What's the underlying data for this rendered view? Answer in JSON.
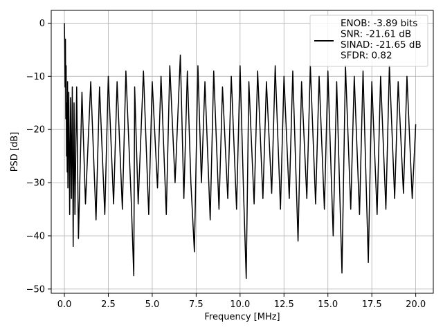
{
  "chart_data": {
    "type": "line",
    "title": "",
    "xlabel": "Frequency [MHz]",
    "ylabel": "PSD [dB]",
    "xlim": [
      -0.75,
      21.0
    ],
    "ylim": [
      -50.8,
      2.4
    ],
    "xticks": [
      0.0,
      2.5,
      5.0,
      7.5,
      10.0,
      12.5,
      15.0,
      17.5,
      20.0
    ],
    "xtick_labels": [
      "0.0",
      "2.5",
      "5.0",
      "7.5",
      "10.0",
      "12.5",
      "15.0",
      "17.5",
      "20.0"
    ],
    "yticks": [
      0,
      -10,
      -20,
      -30,
      -40,
      -50
    ],
    "ytick_labels": [
      "0",
      "−10",
      "−20",
      "−30",
      "−40",
      "−50"
    ],
    "grid": true,
    "legend": {
      "placement": "top-right",
      "entries": [
        "ENOB: -3.89 bits",
        "SNR: -21.61 dB",
        "SINAD: -21.65 dB",
        "SFDR: 0.82"
      ]
    },
    "series_color": "#000000",
    "series": [
      {
        "x": [
          0.0,
          0.02,
          0.04,
          0.06,
          0.08,
          0.1,
          0.12,
          0.14,
          0.16,
          0.18,
          0.2,
          0.25,
          0.3,
          0.35,
          0.4,
          0.45,
          0.5,
          0.55,
          0.6,
          0.7,
          0.8,
          1.0,
          1.2,
          1.5,
          1.8,
          2.0,
          2.3,
          2.5,
          2.8,
          3.0,
          3.3,
          3.5,
          3.8,
          3.95,
          4.0,
          4.2,
          4.5,
          4.8,
          5.0,
          5.3,
          5.5,
          5.8,
          6.0,
          6.3,
          6.6,
          6.8,
          7.0,
          7.2,
          7.4,
          7.6,
          7.8,
          8.0,
          8.3,
          8.5,
          8.8,
          9.0,
          9.3,
          9.5,
          9.8,
          10.0,
          10.2,
          10.35,
          10.5,
          10.8,
          11.0,
          11.3,
          11.5,
          11.8,
          12.0,
          12.3,
          12.5,
          12.8,
          13.0,
          13.3,
          13.5,
          13.8,
          14.0,
          14.3,
          14.5,
          14.8,
          15.0,
          15.3,
          15.5,
          15.8,
          16.0,
          16.3,
          16.5,
          16.8,
          17.0,
          17.3,
          17.5,
          17.8,
          18.0,
          18.3,
          18.5,
          18.8,
          19.0,
          19.3,
          19.5,
          19.8,
          20.0
        ],
        "y": [
          0.0,
          -5.0,
          -12.0,
          -3.0,
          -18.0,
          -8.0,
          -25.0,
          -15.0,
          -28.0,
          -11.0,
          -31.0,
          -13.0,
          -36.0,
          -14.0,
          -33.0,
          -12.0,
          -42.0,
          -15.0,
          -36.0,
          -12.0,
          -40.5,
          -13.0,
          -34.0,
          -11.0,
          -37.0,
          -12.0,
          -36.0,
          -10.0,
          -34.0,
          -11.0,
          -35.0,
          -9.0,
          -33.0,
          -47.5,
          -12.0,
          -34.0,
          -9.0,
          -36.0,
          -11.0,
          -31.0,
          -10.0,
          -36.0,
          -8.0,
          -30.0,
          -6.0,
          -33.0,
          -9.0,
          -30.0,
          -43.0,
          -8.0,
          -30.0,
          -11.0,
          -37.0,
          -9.0,
          -35.0,
          -12.0,
          -33.0,
          -10.0,
          -35.0,
          -8.0,
          -32.0,
          -48.0,
          -11.0,
          -34.0,
          -9.0,
          -33.0,
          -11.0,
          -32.0,
          -8.0,
          -35.0,
          -10.0,
          -33.0,
          -9.0,
          -41.0,
          -11.0,
          -33.0,
          -8.0,
          -34.0,
          -10.0,
          -35.0,
          -9.0,
          -40.0,
          -11.0,
          -47.0,
          -8.0,
          -35.0,
          -10.0,
          -36.0,
          -9.0,
          -45.0,
          -11.0,
          -36.0,
          -10.0,
          -35.0,
          -8.0,
          -33.0,
          -11.0,
          -32.0,
          -10.0,
          -33.0,
          -19.0
        ]
      }
    ]
  }
}
